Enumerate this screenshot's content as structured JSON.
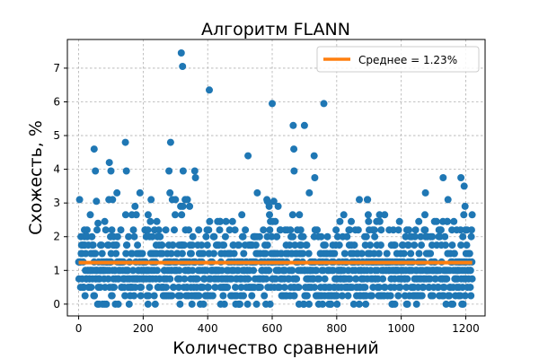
{
  "chart_data": {
    "type": "scatter",
    "title": "Алгоритм FLANN",
    "xlabel": "Количество сравнений",
    "ylabel": "Схожесть, %",
    "xlim": [
      -35,
      1260
    ],
    "ylim": [
      -0.35,
      7.85
    ],
    "xticks": [
      0,
      200,
      400,
      600,
      800,
      1000,
      1200
    ],
    "yticks": [
      0,
      1,
      2,
      3,
      4,
      5,
      6,
      7
    ],
    "grid": true,
    "legend_position": "top-right",
    "point_color": "#1f77b4",
    "mean_color": "#ff7f0e",
    "series": [
      {
        "name": "Схожесть",
        "n_points": 1224,
        "level_values": [
          0,
          0.25,
          0.5,
          0.75,
          1.0,
          1.25,
          1.5,
          1.75,
          2.0,
          2.2,
          2.45,
          2.65,
          2.9,
          3.1,
          3.3
        ],
        "highlighted_points": [
          {
            "x": 18,
            "y": 2.2
          },
          {
            "x": 48,
            "y": 4.6
          },
          {
            "x": 52,
            "y": 3.95
          },
          {
            "x": 55,
            "y": 3.05
          },
          {
            "x": 60,
            "y": 2.4
          },
          {
            "x": 95,
            "y": 4.2
          },
          {
            "x": 100,
            "y": 3.95
          },
          {
            "x": 105,
            "y": 3.1
          },
          {
            "x": 145,
            "y": 4.8
          },
          {
            "x": 148,
            "y": 3.95
          },
          {
            "x": 165,
            "y": 2.65
          },
          {
            "x": 190,
            "y": 3.3
          },
          {
            "x": 280,
            "y": 3.95
          },
          {
            "x": 285,
            "y": 4.8
          },
          {
            "x": 283,
            "y": 3.3
          },
          {
            "x": 300,
            "y": 3.1
          },
          {
            "x": 318,
            "y": 7.45
          },
          {
            "x": 322,
            "y": 7.05
          },
          {
            "x": 324,
            "y": 3.95
          },
          {
            "x": 330,
            "y": 3.1
          },
          {
            "x": 360,
            "y": 3.95
          },
          {
            "x": 362,
            "y": 3.75
          },
          {
            "x": 405,
            "y": 6.35
          },
          {
            "x": 525,
            "y": 4.4
          },
          {
            "x": 585,
            "y": 3.05
          },
          {
            "x": 600,
            "y": 5.95
          },
          {
            "x": 605,
            "y": 3.05
          },
          {
            "x": 665,
            "y": 5.3
          },
          {
            "x": 667,
            "y": 4.6
          },
          {
            "x": 668,
            "y": 3.95
          },
          {
            "x": 700,
            "y": 5.3
          },
          {
            "x": 715,
            "y": 3.3
          },
          {
            "x": 730,
            "y": 4.4
          },
          {
            "x": 732,
            "y": 3.75
          },
          {
            "x": 760,
            "y": 5.95
          },
          {
            "x": 870,
            "y": 3.1
          },
          {
            "x": 895,
            "y": 3.1
          },
          {
            "x": 1075,
            "y": 3.3
          },
          {
            "x": 1130,
            "y": 3.75
          },
          {
            "x": 1145,
            "y": 3.1
          },
          {
            "x": 1185,
            "y": 3.75
          },
          {
            "x": 1195,
            "y": 3.5
          },
          {
            "x": 1198,
            "y": 2.9
          },
          {
            "x": 1220,
            "y": 2.65
          },
          {
            "x": 80,
            "y": 0.0
          },
          {
            "x": 215,
            "y": 0.0
          },
          {
            "x": 440,
            "y": 0.0
          },
          {
            "x": 980,
            "y": 0.0
          }
        ]
      },
      {
        "name": "Среднее = 1.23%",
        "type": "line",
        "x": [
          0,
          1220
        ],
        "y": [
          1.23,
          1.23
        ]
      }
    ]
  }
}
